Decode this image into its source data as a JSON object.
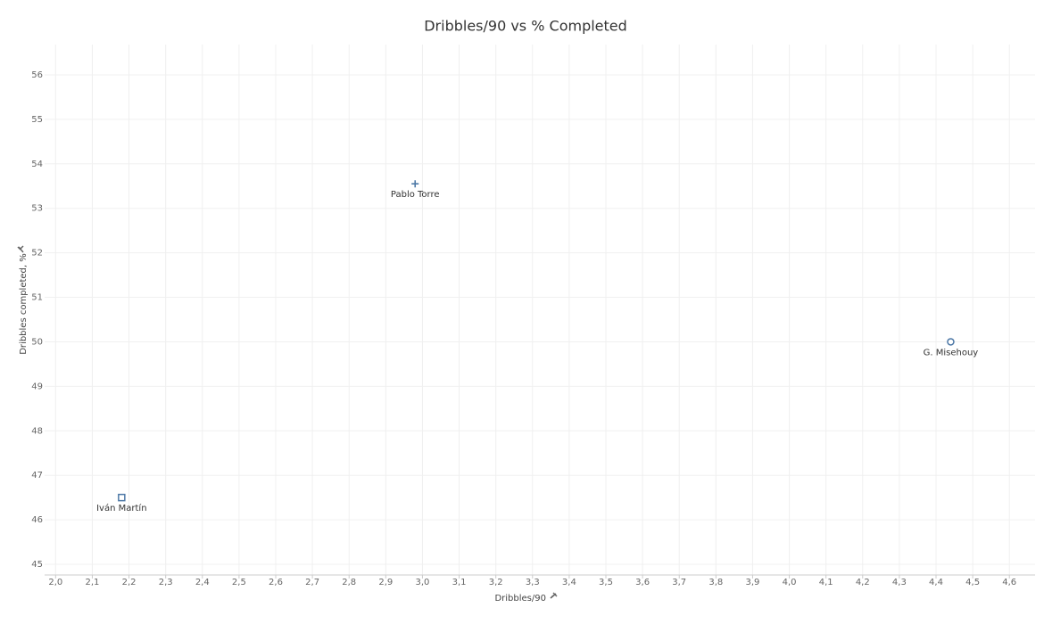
{
  "chart_data": {
    "type": "scatter",
    "title": "Dribbles/90 vs % Completed",
    "x_label": "Dribbles/90",
    "y_label": "Dribbles completed, %",
    "series": [
      {
        "name": "Pablo Torre",
        "marker": "plus",
        "color": "#4e79a7",
        "x": [
          2.98
        ],
        "values": [
          53.55
        ]
      },
      {
        "name": "G. Misehouy",
        "marker": "circle",
        "color": "#4e79a7",
        "x": [
          4.44
        ],
        "values": [
          50.0
        ]
      },
      {
        "name": "Iván Martín",
        "marker": "square",
        "color": "#4e79a7",
        "x": [
          2.18
        ],
        "values": [
          46.5
        ]
      }
    ],
    "xlim": [
      1.97,
      4.67
    ],
    "ylim": [
      44.76,
      56.68
    ],
    "xticks": [
      {
        "value": 2.0,
        "label": "2,0"
      },
      {
        "value": 2.1,
        "label": "2,1"
      },
      {
        "value": 2.2,
        "label": "2,2"
      },
      {
        "value": 2.3,
        "label": "2,3"
      },
      {
        "value": 2.4,
        "label": "2,4"
      },
      {
        "value": 2.5,
        "label": "2,5"
      },
      {
        "value": 2.6,
        "label": "2,6"
      },
      {
        "value": 2.7,
        "label": "2,7"
      },
      {
        "value": 2.8,
        "label": "2,8"
      },
      {
        "value": 2.9,
        "label": "2,9"
      },
      {
        "value": 3.0,
        "label": "3,0"
      },
      {
        "value": 3.1,
        "label": "3,1"
      },
      {
        "value": 3.2,
        "label": "3,2"
      },
      {
        "value": 3.3,
        "label": "3,3"
      },
      {
        "value": 3.4,
        "label": "3,4"
      },
      {
        "value": 3.5,
        "label": "3,5"
      },
      {
        "value": 3.6,
        "label": "3,6"
      },
      {
        "value": 3.7,
        "label": "3,7"
      },
      {
        "value": 3.8,
        "label": "3,8"
      },
      {
        "value": 3.9,
        "label": "3,9"
      },
      {
        "value": 4.0,
        "label": "4,0"
      },
      {
        "value": 4.1,
        "label": "4,1"
      },
      {
        "value": 4.2,
        "label": "4,2"
      },
      {
        "value": 4.3,
        "label": "4,3"
      },
      {
        "value": 4.4,
        "label": "4,4"
      },
      {
        "value": 4.5,
        "label": "4,5"
      },
      {
        "value": 4.6,
        "label": "4,6"
      }
    ],
    "yticks": [
      45,
      46,
      47,
      48,
      49,
      50,
      51,
      52,
      53,
      54,
      55,
      56
    ],
    "grid": true
  }
}
